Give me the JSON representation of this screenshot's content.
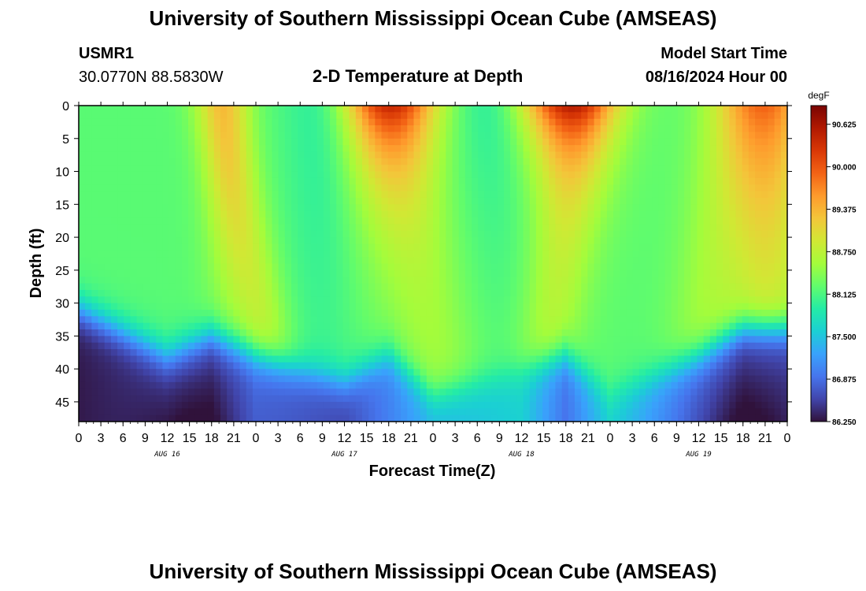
{
  "header": {
    "title": "University of Southern Mississippi Ocean Cube (AMSEAS)",
    "station_id": "USMR1",
    "station_coords": "30.0770N  88.5830W",
    "subtitle": "2-D Temperature at Depth",
    "model_start_label": "Model Start Time",
    "model_start_value": "08/16/2024 Hour 00"
  },
  "footer": {
    "title": "University of Southern Mississippi Ocean Cube (AMSEAS)"
  },
  "colors": {
    "c0": "#30123b",
    "c1": "#4145ab",
    "c2": "#4675ed",
    "c3": "#39a2fc",
    "c4": "#1bcfd4",
    "c5": "#24eca6",
    "c6": "#61fc6c",
    "c7": "#a4fc3b",
    "c8": "#d1e834",
    "c9": "#f3c63a",
    "c10": "#fe9b2d",
    "c11": "#f36315",
    "c12": "#d93806",
    "c13": "#b11901",
    "c14": "#7a0402"
  },
  "chart_data": {
    "type": "heatmap",
    "title": "2-D Temperature at Depth",
    "xlabel": "Forecast Time(Z)",
    "ylabel": "Depth (ft)",
    "x_ticks": [
      "0",
      "3",
      "6",
      "9",
      "12",
      "15",
      "18",
      "21",
      "0",
      "3",
      "6",
      "9",
      "12",
      "15",
      "18",
      "21",
      "0",
      "3",
      "6",
      "9",
      "12",
      "15",
      "18",
      "21",
      "0",
      "3",
      "6",
      "9",
      "12",
      "15",
      "18",
      "21",
      "0"
    ],
    "x_range_hours": [
      0,
      96
    ],
    "day_labels": [
      {
        "label": "AUG 16",
        "hour": 12
      },
      {
        "label": "AUG 17",
        "hour": 36
      },
      {
        "label": "AUG 18",
        "hour": 60
      },
      {
        "label": "AUG 19",
        "hour": 84
      }
    ],
    "y_ticks": [
      "0",
      "5",
      "10",
      "15",
      "20",
      "25",
      "30",
      "35",
      "40",
      "45"
    ],
    "y_range_ft": [
      0,
      48
    ],
    "colorbar_unit": "degF",
    "colorbar_ticks": [
      "90.625",
      "90.000",
      "89.375",
      "88.750",
      "88.125",
      "87.500",
      "86.875",
      "86.250"
    ],
    "colorbar_range_degF": [
      86.25,
      90.9
    ],
    "sampled_field": {
      "hours": [
        0,
        12,
        18,
        24,
        36,
        42,
        48,
        60,
        66,
        72,
        84,
        90,
        96
      ],
      "surface_degF": [
        88.3,
        88.3,
        89.3,
        88.5,
        88.2,
        90.6,
        88.6,
        88.0,
        90.6,
        90.0,
        88.5,
        89.5,
        89.8
      ],
      "bottom_degF": [
        86.3,
        86.5,
        86.4,
        86.8,
        86.6,
        87.0,
        87.4,
        87.6,
        86.9,
        87.6,
        86.8,
        86.4,
        86.5
      ],
      "thermocline_depth_ft": [
        31,
        38,
        35,
        38,
        42,
        38,
        44,
        40,
        38,
        44,
        38,
        34,
        34
      ]
    }
  }
}
